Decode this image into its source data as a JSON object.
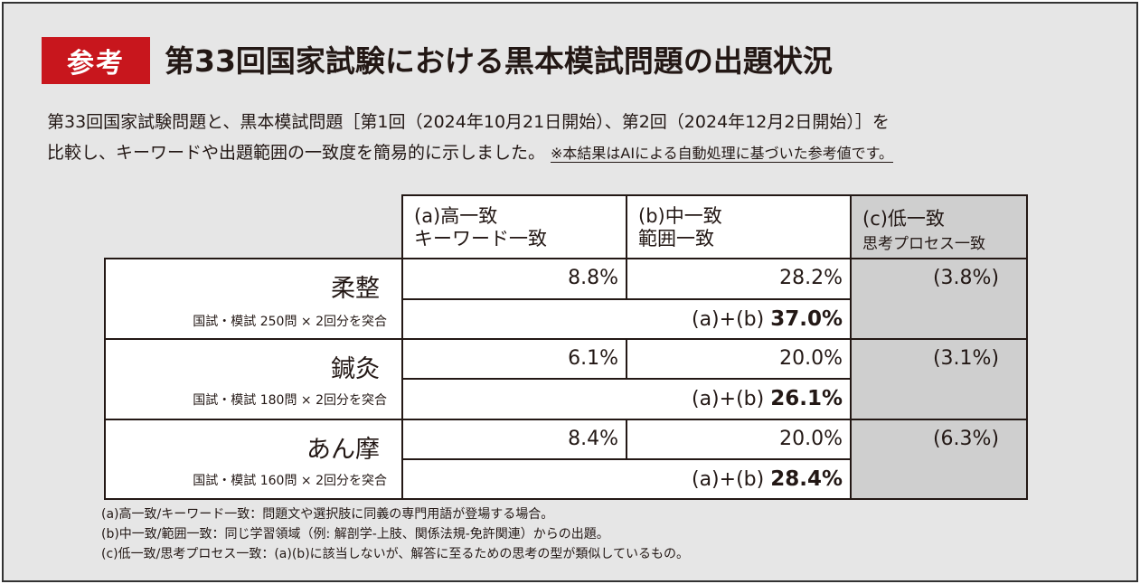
{
  "badge": "参考",
  "title": "第33回国家試験における黒本模試問題の出題状況",
  "description": {
    "line1": "第33回国家試験問題と、黒本模試問題［第1回（2024年10月21日開始）、第2回（2024年12月2日開始）］を",
    "line2": "比較し、キーワードや出題範囲の一致度を簡易的に示しました。",
    "note": "※本結果はAIによる自動処理に基づいた参考値です。"
  },
  "table": {
    "headers": {
      "a": {
        "line1": "(a)高一致",
        "line2": "キーワード一致"
      },
      "b": {
        "line1": "(b)中一致",
        "line2": "範囲一致"
      },
      "c": {
        "line1": "(c)低一致",
        "line2": "思考プロセス一致"
      }
    },
    "sum_label": "(a)+(b)",
    "rows": [
      {
        "category": "柔整",
        "sub": "国試・模試 250問 × 2回分を突合",
        "a": "8.8%",
        "b": "28.2%",
        "c": "(3.8%)",
        "sum": "37.0%"
      },
      {
        "category": "鍼灸",
        "sub": "国試・模試 180問 × 2回分を突合",
        "a": "6.1%",
        "b": "20.0%",
        "c": "(3.1%)",
        "sum": "26.1%"
      },
      {
        "category": "あん摩",
        "sub": "国試・模試 160問 × 2回分を突合",
        "a": "8.4%",
        "b": "20.0%",
        "c": "(6.3%)",
        "sum": "28.4%"
      }
    ]
  },
  "footnotes": [
    "(a)高一致/キーワード一致：問題文や選択肢に同義の専門用語が登場する場合。",
    "(b)中一致/範囲一致：同じ学習領域（例: 解剖学-上肢、関係法規-免許関連）からの出題。",
    "(c)低一致/思考プロセス一致：(a)(b)に該当しないが、解答に至るための思考の型が類似しているもの。"
  ],
  "colors": {
    "badge": "#c8161d",
    "background": "#e6e6e6",
    "gray_column": "#cfcfcf"
  }
}
